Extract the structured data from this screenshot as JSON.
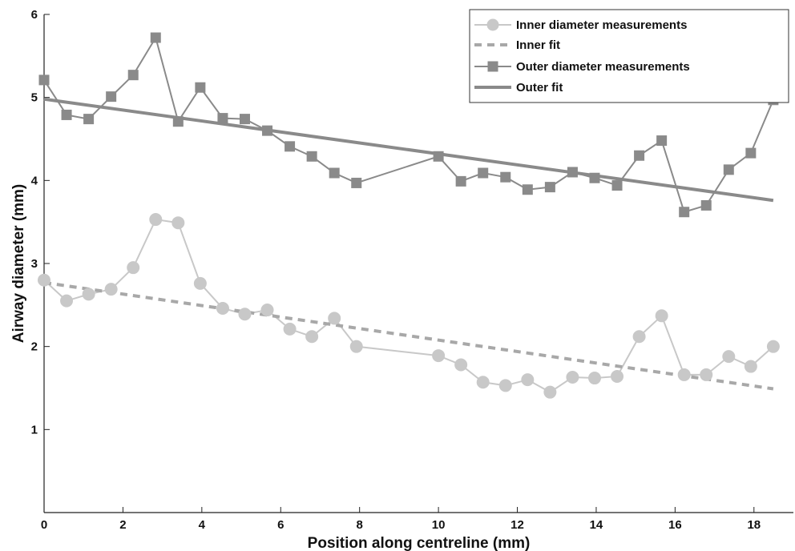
{
  "chart_data": {
    "type": "line",
    "xlabel": "Position along centreline (mm)",
    "ylabel": "Airway diameter (mm)",
    "xlim": [
      0,
      19
    ],
    "ylim": [
      0,
      6
    ],
    "xticks": [
      0,
      2,
      4,
      6,
      8,
      10,
      12,
      14,
      16,
      18
    ],
    "yticks": [
      1,
      2,
      3,
      4,
      5,
      6
    ],
    "grid": false,
    "legend_position": "top-right",
    "colors": {
      "inner": "#c8c8c8",
      "outer": "#8a8a8a",
      "axis": "#222222"
    },
    "series": [
      {
        "name": "Inner diameter measurements",
        "style": "line-circle",
        "x": [
          0,
          0.57,
          1.13,
          1.7,
          2.26,
          2.83,
          3.4,
          3.96,
          4.53,
          5.09,
          5.66,
          6.23,
          6.79,
          7.36,
          7.92,
          10.0,
          10.57,
          11.13,
          11.7,
          12.26,
          12.83,
          13.4,
          13.96,
          14.53,
          15.09,
          15.66,
          16.23,
          16.79,
          17.36,
          17.92,
          18.49
        ],
        "y": [
          2.8,
          2.55,
          2.63,
          2.69,
          2.95,
          3.53,
          3.49,
          2.76,
          2.46,
          2.39,
          2.44,
          2.21,
          2.12,
          2.34,
          2.0,
          1.89,
          1.78,
          1.57,
          1.53,
          1.6,
          1.45,
          1.63,
          1.62,
          1.64,
          2.12,
          2.37,
          1.66,
          1.66,
          1.88,
          1.76,
          2.0
        ]
      },
      {
        "name": "Inner fit",
        "style": "dashed",
        "x": [
          0,
          18.49
        ],
        "y": [
          2.77,
          1.49
        ]
      },
      {
        "name": "Outer diameter measurements",
        "style": "line-square",
        "x": [
          0,
          0.57,
          1.13,
          1.7,
          2.26,
          2.83,
          3.4,
          3.96,
          4.53,
          5.09,
          5.66,
          6.23,
          6.79,
          7.36,
          7.92,
          10.0,
          10.57,
          11.13,
          11.7,
          12.26,
          12.83,
          13.4,
          13.96,
          14.53,
          15.09,
          15.66,
          16.23,
          16.79,
          17.36,
          17.92,
          18.49
        ],
        "y": [
          5.21,
          4.79,
          4.74,
          5.01,
          5.27,
          5.72,
          4.71,
          5.12,
          4.75,
          4.74,
          4.6,
          4.41,
          4.29,
          4.09,
          3.97,
          4.29,
          3.99,
          4.09,
          4.04,
          3.89,
          3.92,
          4.1,
          4.03,
          3.94,
          4.3,
          4.48,
          3.62,
          3.7,
          4.13,
          4.33,
          4.97
        ]
      },
      {
        "name": "Outer fit",
        "style": "solid",
        "x": [
          0,
          18.49
        ],
        "y": [
          4.98,
          3.76
        ]
      }
    ]
  }
}
